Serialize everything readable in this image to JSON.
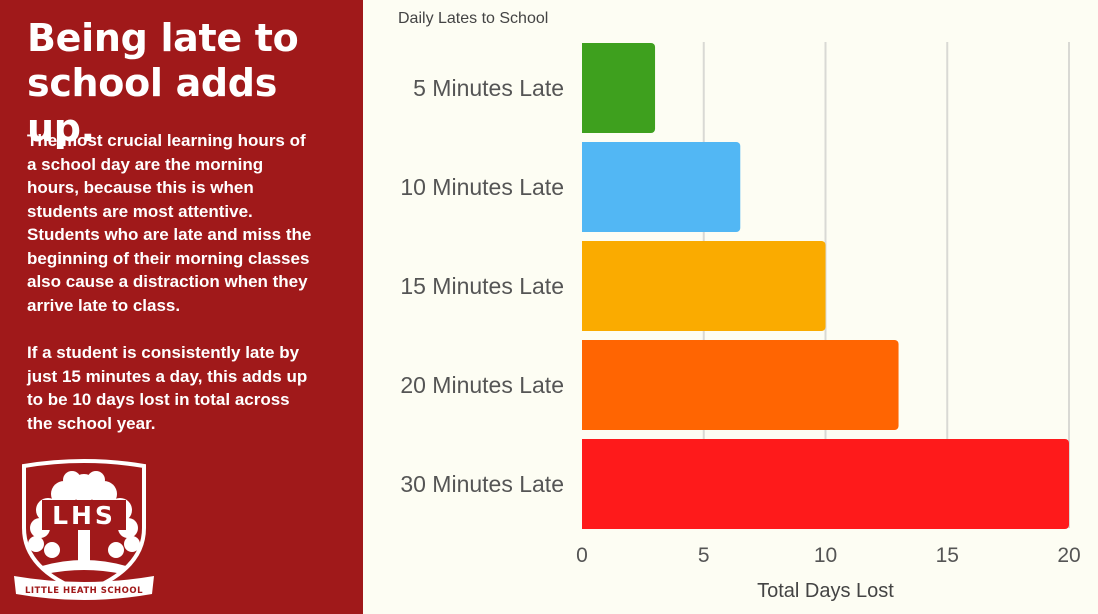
{
  "left_panel": {
    "headline": "Being late to\nschool adds up.",
    "paragraph1": "The most crucial learning hours of a school day are the morning hours, because this is when students are most attentive. Students who are late and miss the beginning of their morning classes also cause a distraction when they arrive late to class.",
    "paragraph2": "If a student is consistently late by just 15 minutes a day, this adds up to be 10 days lost in total across the school year.",
    "logo": {
      "initials": "LHS",
      "school_name": "LITTLE HEATH SCHOOL"
    }
  },
  "colors": {
    "panel_background": "#a0191a",
    "page_background": "#fdfdf3",
    "grid": "#d9d9d4",
    "axis_text": "#555555"
  },
  "chart_data": {
    "type": "bar",
    "orientation": "horizontal",
    "title": "Daily Lates to School",
    "xlabel": "Total Days Lost",
    "ylabel": "",
    "categories": [
      "5 Minutes Late",
      "10 Minutes Late",
      "15 Minutes Late",
      "20 Minutes Late",
      "30 Minutes Late"
    ],
    "values": [
      3,
      6.5,
      10,
      13,
      20
    ],
    "bar_colors": [
      "#3ea01e",
      "#52b7f4",
      "#faab00",
      "#ff6502",
      "#fe1a1b"
    ],
    "xlim": [
      0,
      20
    ],
    "xticks": [
      0,
      5,
      10,
      15,
      20
    ],
    "grid": true
  }
}
